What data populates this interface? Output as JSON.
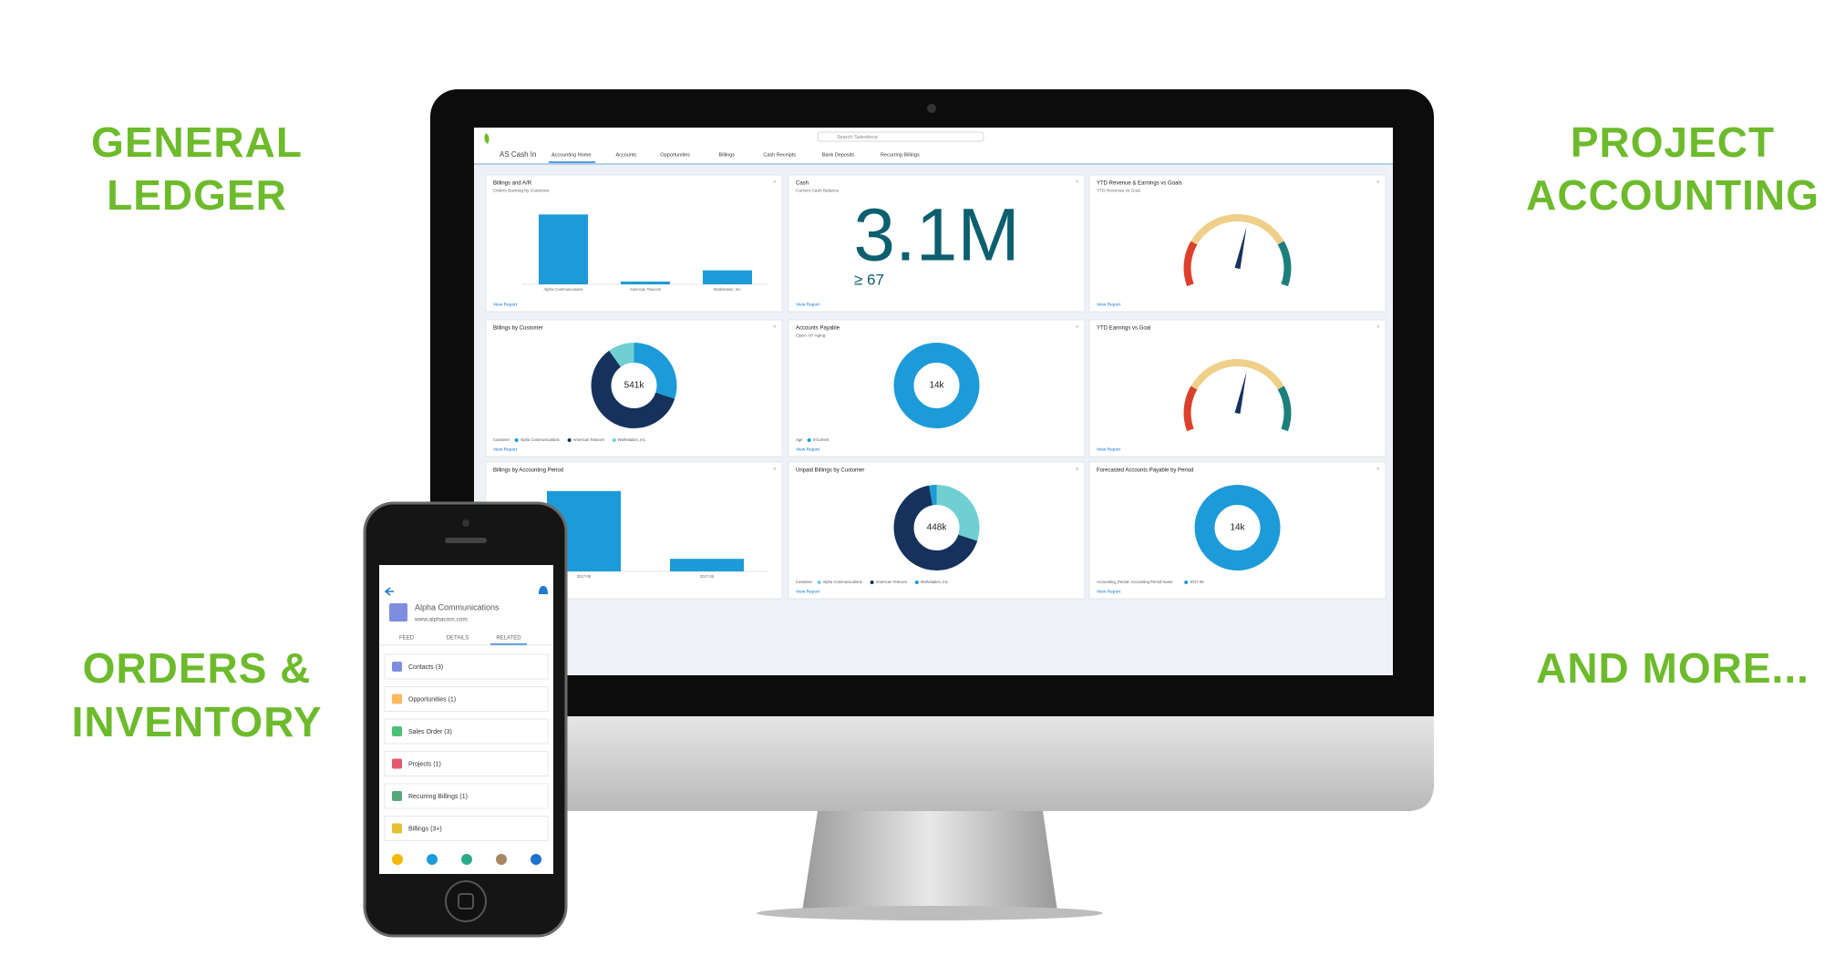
{
  "headlines": {
    "top_left": [
      "GENERAL",
      "LEDGER"
    ],
    "top_right": [
      "PROJECT",
      "ACCOUNTING"
    ],
    "bottom_left": [
      "ORDERS &",
      "INVENTORY"
    ],
    "bottom_right": [
      "AND MORE..."
    ]
  },
  "monitor": {
    "app_name": "AS Cash In",
    "search": "Search Salesforce",
    "tabs": [
      "Accounting Home",
      "Accounts",
      "Opportunities",
      "Billings",
      "Cash Receipts",
      "Bank Deposits",
      "Recurring Billings"
    ],
    "cards": [
      {
        "title": "Billings and A/R",
        "subtitle": "Orders Backlog by Customer",
        "link": "View Report",
        "chart": {
          "type": "bar",
          "categories": [
            "Alpha Communications",
            "American Telecom",
            "Workstation, Inc."
          ],
          "values": [
            100,
            4,
            20
          ],
          "ylim": [
            0,
            120
          ],
          "color": "#1d9bd8"
        }
      },
      {
        "title": "Cash",
        "subtitle": "Current Cash Balance",
        "link": "View Report",
        "chart": {
          "type": "kpi",
          "value": "3.1M",
          "sub": "≥ 67"
        }
      },
      {
        "title": "YTD Revenue & Earnings vs Goals",
        "subtitle": "YTD Revenue vs Goal",
        "link": "View Report",
        "chart": {
          "type": "gauge"
        }
      },
      {
        "title": "Billings by Customer",
        "link": "View Report",
        "chart": {
          "type": "donut",
          "center": "541k",
          "legend_title": "Customer",
          "categories": [
            "Alpha Communications",
            "American Telecom",
            "Workstation, Inc."
          ],
          "values": [
            30,
            60,
            10
          ],
          "colors": [
            "#1d9bd8",
            "#16325c",
            "#6fcfd1"
          ]
        }
      },
      {
        "title": "Accounts Payable",
        "subtitle": "Open AP Aging",
        "link": "View Report",
        "chart": {
          "type": "donut",
          "center": "14k",
          "legend_title": "Age",
          "categories": [
            "0-Current"
          ],
          "values": [
            100
          ],
          "colors": [
            "#1d9bd8"
          ]
        }
      },
      {
        "title": "YTD Earnings vs Goal",
        "link": "View Report",
        "chart": {
          "type": "gauge"
        }
      },
      {
        "title": "Billings by Accounting Period",
        "link": "View Report",
        "chart": {
          "type": "bar",
          "categories": [
            "2017-05",
            "2017-06"
          ],
          "values": [
            115,
            18
          ],
          "ylim": [
            0,
            120
          ],
          "color": "#1d9bd8"
        }
      },
      {
        "title": "Unpaid Billings by Customer",
        "link": "View Report",
        "chart": {
          "type": "donut",
          "center": "448k",
          "legend_title": "Customer",
          "categories": [
            "Alpha Communications",
            "American Telecom",
            "Workstation, Inc."
          ],
          "values": [
            30,
            67,
            3
          ],
          "colors": [
            "#6fcfd1",
            "#16325c",
            "#1d9bd8"
          ]
        }
      },
      {
        "title": "Forecasted Accounts Payable by Period",
        "link": "View Report",
        "chart": {
          "type": "donut",
          "center": "14k",
          "legend_title": "Accounting_Period: Accounting Period Name",
          "categories": [
            "2017-06"
          ],
          "values": [
            100
          ],
          "colors": [
            "#1d9bd8"
          ]
        }
      }
    ]
  },
  "phone": {
    "account": "Alpha Communications",
    "url": "www.alphacom.com",
    "tabs": [
      "FEED",
      "DETAILS",
      "RELATED"
    ],
    "items": [
      {
        "label": "Contacts (3)",
        "color": "#7f8de1"
      },
      {
        "label": "Opportunities (1)",
        "color": "#fcb95b"
      },
      {
        "label": "Sales Order (3)",
        "color": "#4bc076"
      },
      {
        "label": "Projects (1)",
        "color": "#e4596b"
      },
      {
        "label": "Recurring Billings (1)",
        "color": "#54a77b"
      },
      {
        "label": "Billings (3+)",
        "color": "#e3c132"
      }
    ]
  }
}
